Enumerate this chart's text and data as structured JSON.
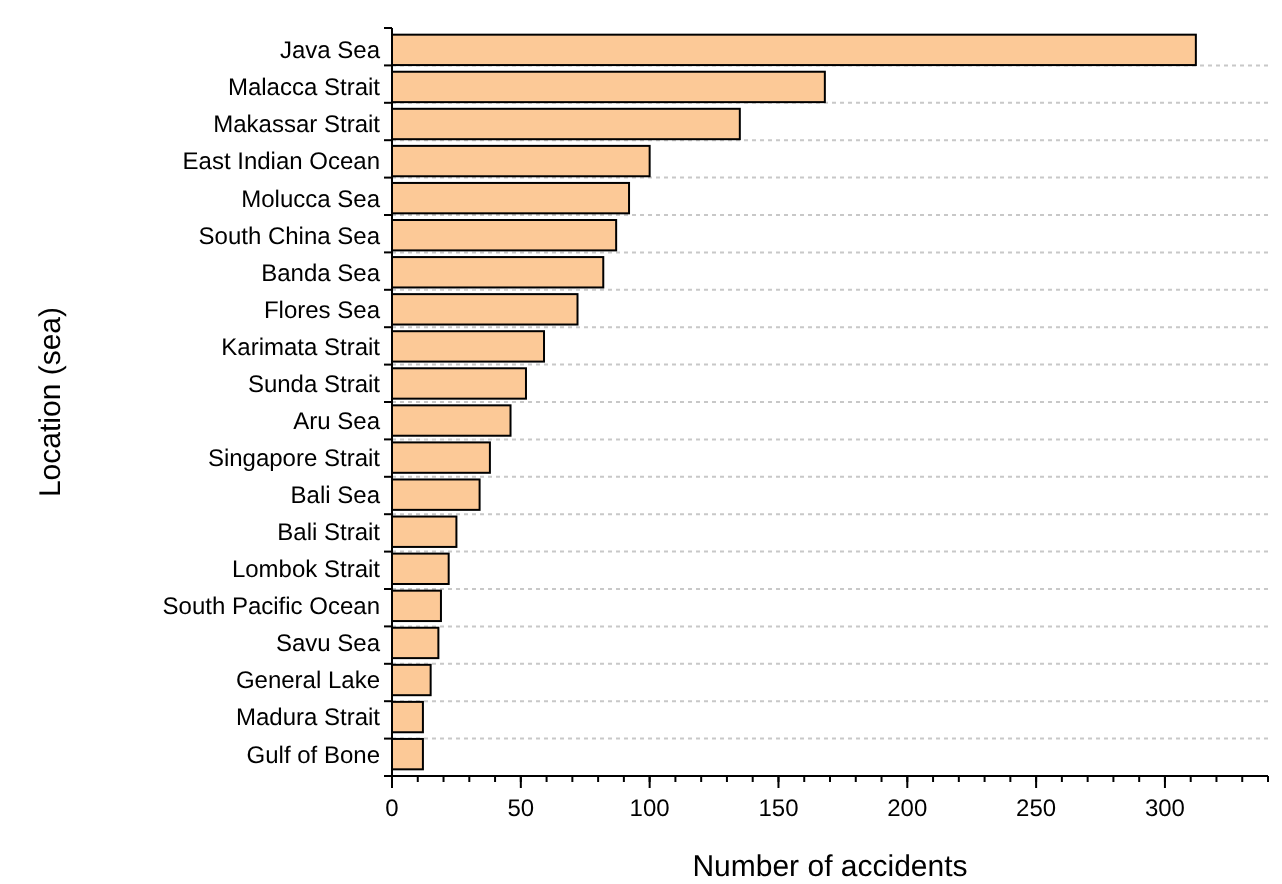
{
  "chart_data": {
    "type": "bar",
    "orientation": "horizontal",
    "xlabel": "Number of accidents",
    "ylabel": "Location (sea)",
    "categories": [
      "Java Sea",
      "Malacca Strait",
      "Makassar Strait",
      "East Indian Ocean",
      "Molucca Sea",
      "South China Sea",
      "Banda Sea",
      "Flores Sea",
      "Karimata Strait",
      "Sunda Strait",
      "Aru Sea",
      "Singapore Strait",
      "Bali Sea",
      "Bali Strait",
      "Lombok Strait",
      "South Pacific Ocean",
      "Savu Sea",
      "General Lake",
      "Madura Strait",
      "Gulf of Bone"
    ],
    "values": [
      312,
      168,
      135,
      100,
      92,
      87,
      82,
      72,
      59,
      52,
      46,
      38,
      34,
      25,
      22,
      19,
      18,
      15,
      12,
      12
    ],
    "color": "#fcc997",
    "xlim": [
      0,
      340
    ],
    "xticks": [
      0,
      50,
      100,
      150,
      200,
      250,
      300
    ],
    "grid": "y"
  }
}
